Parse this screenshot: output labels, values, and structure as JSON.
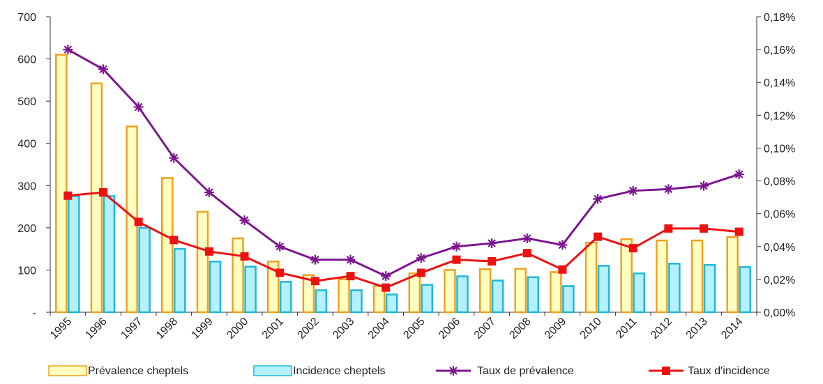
{
  "chart_data": {
    "type": "bar",
    "categories": [
      "1995",
      "1996",
      "1997",
      "1998",
      "1999",
      "2000",
      "2001",
      "2002",
      "2003",
      "2004",
      "2005",
      "2006",
      "2007",
      "2008",
      "2009",
      "2010",
      "2011",
      "2012",
      "2013",
      "2014"
    ],
    "left_axis": {
      "ylim": [
        0,
        700
      ],
      "ticks": [
        "-",
        "100",
        "200",
        "300",
        "400",
        "500",
        "600",
        "700"
      ]
    },
    "right_axis": {
      "ylim": [
        0.0,
        0.18
      ],
      "ticks": [
        "0,00%",
        "0,02%",
        "0,04%",
        "0,06%",
        "0,08%",
        "0,10%",
        "0,12%",
        "0,14%",
        "0,16%",
        "0,18%"
      ]
    },
    "grid": false,
    "legend_position": "bottom",
    "series": [
      {
        "name": "Prévalence cheptels",
        "type": "bar",
        "axis": "left",
        "fill": "#ffffc0",
        "stroke": "#f0a020",
        "values": [
          610,
          542,
          440,
          318,
          238,
          175,
          120,
          88,
          78,
          62,
          92,
          100,
          102,
          103,
          95,
          165,
          173,
          170,
          170,
          178
        ]
      },
      {
        "name": "Incidence cheptels",
        "type": "bar",
        "axis": "left",
        "fill": "#b4f0ff",
        "stroke": "#20b8d8",
        "values": [
          275,
          275,
          200,
          150,
          120,
          108,
          72,
          52,
          52,
          42,
          65,
          85,
          75,
          83,
          62,
          110,
          92,
          115,
          112,
          107
        ]
      },
      {
        "name": "Taux de prévalence",
        "type": "line",
        "axis": "right",
        "color": "#7d1590",
        "marker": "star",
        "values": [
          0.16,
          0.148,
          0.125,
          0.094,
          0.073,
          0.056,
          0.04,
          0.032,
          0.032,
          0.022,
          0.033,
          0.04,
          0.042,
          0.045,
          0.041,
          0.069,
          0.074,
          0.075,
          0.077,
          0.084
        ]
      },
      {
        "name": "Taux d'incidence",
        "type": "line",
        "axis": "right",
        "color": "#ee1111",
        "marker": "square",
        "values": [
          0.071,
          0.073,
          0.055,
          0.044,
          0.037,
          0.034,
          0.024,
          0.019,
          0.022,
          0.015,
          0.024,
          0.032,
          0.031,
          0.036,
          0.026,
          0.046,
          0.039,
          0.051,
          0.051,
          0.049
        ]
      }
    ]
  }
}
